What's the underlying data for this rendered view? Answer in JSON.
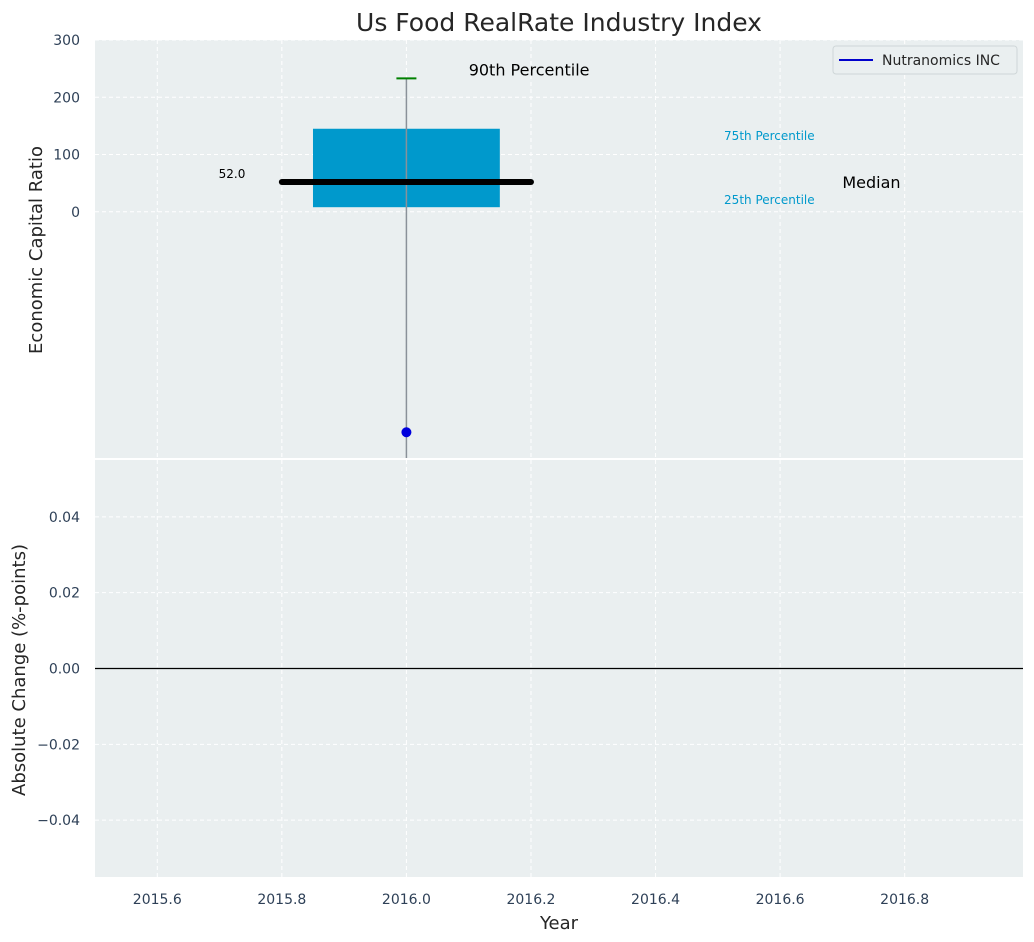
{
  "chart_data": {
    "title": "Us Food RealRate Industry Index",
    "x_axis": {
      "label": "Year",
      "ticks": [
        2015.6,
        2015.8,
        2016.0,
        2016.2,
        2016.4,
        2016.6,
        2016.8
      ],
      "tick_labels": [
        "2015.6",
        "2015.8",
        "2016.0",
        "2016.2",
        "2016.4",
        "2016.6",
        "2016.8"
      ],
      "range": [
        2015.5,
        2016.99
      ]
    },
    "legend": {
      "position": "top-right",
      "entries": [
        {
          "label": "Nutranomics INC",
          "color": "#0000cc"
        }
      ]
    },
    "colors": {
      "box": "#0099cc",
      "median": "#000000",
      "p90": "#008000",
      "company": "#0000dd",
      "whisker": "#8a9199",
      "background": "#eaeff0",
      "zero_line": "#000000"
    },
    "panels": [
      {
        "type": "box",
        "ylabel": "Economic Capital Ratio",
        "ylim": [
          -430,
          300
        ],
        "yticks": [
          0,
          100,
          200,
          300
        ],
        "ytick_labels": [
          "0",
          "100",
          "200",
          "300"
        ],
        "grid": true,
        "box": {
          "x": 2016.0,
          "x_range": [
            2015.85,
            2016.15
          ],
          "p25": 8,
          "p75": 145,
          "median": 52.0,
          "median_x_range": [
            2015.8,
            2016.2
          ],
          "p90": 233,
          "whisker_low": -430
        },
        "company_point": {
          "name": "Nutranomics INC",
          "x": 2016.0,
          "y": -385
        },
        "annotations": {
          "p90_label": "90th Percentile",
          "p75_label": "75th Percentile",
          "p25_label": "25th Percentile",
          "median_label": "Median",
          "median_value_label": "52.0"
        }
      },
      {
        "type": "line",
        "ylabel": "Absolute Change (%-points)",
        "ylim": [
          -0.055,
          0.055
        ],
        "yticks": [
          -0.04,
          -0.02,
          0.0,
          0.02,
          0.04
        ],
        "ytick_labels": [
          "−0.04",
          "−0.02",
          "0.00",
          "0.02",
          "0.04"
        ],
        "grid": true,
        "zero_line": 0.0
      }
    ]
  }
}
